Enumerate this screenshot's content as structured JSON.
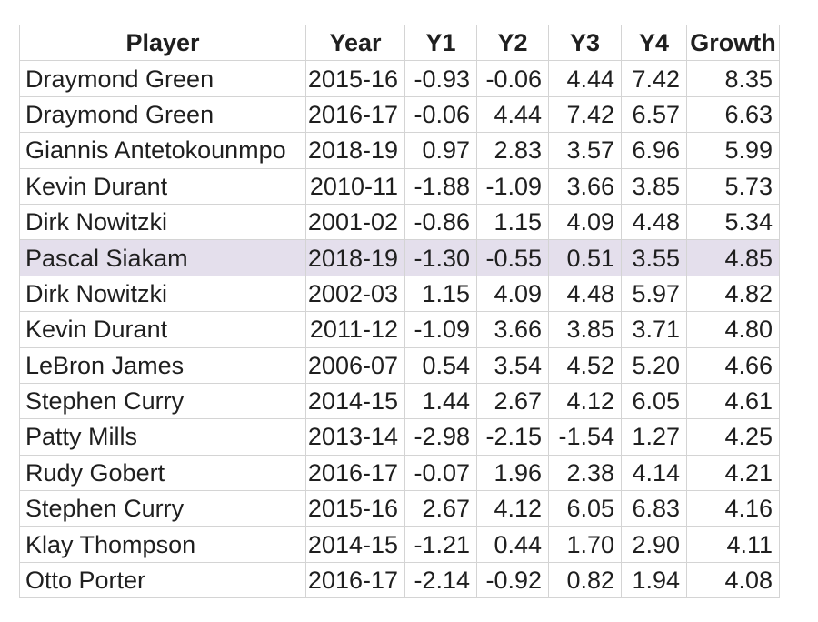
{
  "colors": {
    "background": "#ffffff",
    "text": "#1f1f1f",
    "border": "#d4d4d4",
    "highlight": "#e4dfec"
  },
  "table": {
    "highlighted_row_index": 5,
    "columns": [
      {
        "key": "player",
        "label": "Player",
        "align": "left"
      },
      {
        "key": "year",
        "label": "Year",
        "align": "right"
      },
      {
        "key": "y1",
        "label": "Y1",
        "align": "right"
      },
      {
        "key": "y2",
        "label": "Y2",
        "align": "right"
      },
      {
        "key": "y3",
        "label": "Y3",
        "align": "right"
      },
      {
        "key": "y4",
        "label": "Y4",
        "align": "right"
      },
      {
        "key": "growth",
        "label": "Growth",
        "align": "right"
      }
    ],
    "rows": [
      {
        "player": "Draymond Green",
        "year": "2015-16",
        "y1": "-0.93",
        "y2": "-0.06",
        "y3": "4.44",
        "y4": "7.42",
        "growth": "8.35"
      },
      {
        "player": "Draymond Green",
        "year": "2016-17",
        "y1": "-0.06",
        "y2": "4.44",
        "y3": "7.42",
        "y4": "6.57",
        "growth": "6.63"
      },
      {
        "player": "Giannis Antetokounmpo",
        "year": "2018-19",
        "y1": "0.97",
        "y2": "2.83",
        "y3": "3.57",
        "y4": "6.96",
        "growth": "5.99"
      },
      {
        "player": "Kevin Durant",
        "year": "2010-11",
        "y1": "-1.88",
        "y2": "-1.09",
        "y3": "3.66",
        "y4": "3.85",
        "growth": "5.73"
      },
      {
        "player": "Dirk Nowitzki",
        "year": "2001-02",
        "y1": "-0.86",
        "y2": "1.15",
        "y3": "4.09",
        "y4": "4.48",
        "growth": "5.34"
      },
      {
        "player": "Pascal Siakam",
        "year": "2018-19",
        "y1": "-1.30",
        "y2": "-0.55",
        "y3": "0.51",
        "y4": "3.55",
        "growth": "4.85"
      },
      {
        "player": "Dirk Nowitzki",
        "year": "2002-03",
        "y1": "1.15",
        "y2": "4.09",
        "y3": "4.48",
        "y4": "5.97",
        "growth": "4.82"
      },
      {
        "player": "Kevin Durant",
        "year": "2011-12",
        "y1": "-1.09",
        "y2": "3.66",
        "y3": "3.85",
        "y4": "3.71",
        "growth": "4.80"
      },
      {
        "player": "LeBron James",
        "year": "2006-07",
        "y1": "0.54",
        "y2": "3.54",
        "y3": "4.52",
        "y4": "5.20",
        "growth": "4.66"
      },
      {
        "player": "Stephen Curry",
        "year": "2014-15",
        "y1": "1.44",
        "y2": "2.67",
        "y3": "4.12",
        "y4": "6.05",
        "growth": "4.61"
      },
      {
        "player": "Patty Mills",
        "year": "2013-14",
        "y1": "-2.98",
        "y2": "-2.15",
        "y3": "-1.54",
        "y4": "1.27",
        "growth": "4.25"
      },
      {
        "player": "Rudy Gobert",
        "year": "2016-17",
        "y1": "-0.07",
        "y2": "1.96",
        "y3": "2.38",
        "y4": "4.14",
        "growth": "4.21"
      },
      {
        "player": "Stephen Curry",
        "year": "2015-16",
        "y1": "2.67",
        "y2": "4.12",
        "y3": "6.05",
        "y4": "6.83",
        "growth": "4.16"
      },
      {
        "player": "Klay Thompson",
        "year": "2014-15",
        "y1": "-1.21",
        "y2": "0.44",
        "y3": "1.70",
        "y4": "2.90",
        "growth": "4.11"
      },
      {
        "player": "Otto Porter",
        "year": "2016-17",
        "y1": "-2.14",
        "y2": "-0.92",
        "y3": "0.82",
        "y4": "1.94",
        "growth": "4.08"
      }
    ]
  },
  "chart_data": {
    "type": "table",
    "title": "",
    "columns": [
      "Player",
      "Year",
      "Y1",
      "Y2",
      "Y3",
      "Y4",
      "Growth"
    ],
    "highlighted_row": "Pascal Siakam 2018-19",
    "rows": [
      [
        "Draymond Green",
        "2015-16",
        -0.93,
        -0.06,
        4.44,
        7.42,
        8.35
      ],
      [
        "Draymond Green",
        "2016-17",
        -0.06,
        4.44,
        7.42,
        6.57,
        6.63
      ],
      [
        "Giannis Antetokounmpo",
        "2018-19",
        0.97,
        2.83,
        3.57,
        6.96,
        5.99
      ],
      [
        "Kevin Durant",
        "2010-11",
        -1.88,
        -1.09,
        3.66,
        3.85,
        5.73
      ],
      [
        "Dirk Nowitzki",
        "2001-02",
        -0.86,
        1.15,
        4.09,
        4.48,
        5.34
      ],
      [
        "Pascal Siakam",
        "2018-19",
        -1.3,
        -0.55,
        0.51,
        3.55,
        4.85
      ],
      [
        "Dirk Nowitzki",
        "2002-03",
        1.15,
        4.09,
        4.48,
        5.97,
        4.82
      ],
      [
        "Kevin Durant",
        "2011-12",
        -1.09,
        3.66,
        3.85,
        3.71,
        4.8
      ],
      [
        "LeBron James",
        "2006-07",
        0.54,
        3.54,
        4.52,
        5.2,
        4.66
      ],
      [
        "Stephen Curry",
        "2014-15",
        1.44,
        2.67,
        4.12,
        6.05,
        4.61
      ],
      [
        "Patty Mills",
        "2013-14",
        -2.98,
        -2.15,
        -1.54,
        1.27,
        4.25
      ],
      [
        "Rudy Gobert",
        "2016-17",
        -0.07,
        1.96,
        2.38,
        4.14,
        4.21
      ],
      [
        "Stephen Curry",
        "2015-16",
        2.67,
        4.12,
        6.05,
        6.83,
        4.16
      ],
      [
        "Klay Thompson",
        "2014-15",
        -1.21,
        0.44,
        1.7,
        2.9,
        4.11
      ],
      [
        "Otto Porter",
        "2016-17",
        -2.14,
        -0.92,
        0.82,
        1.94,
        4.08
      ]
    ]
  }
}
